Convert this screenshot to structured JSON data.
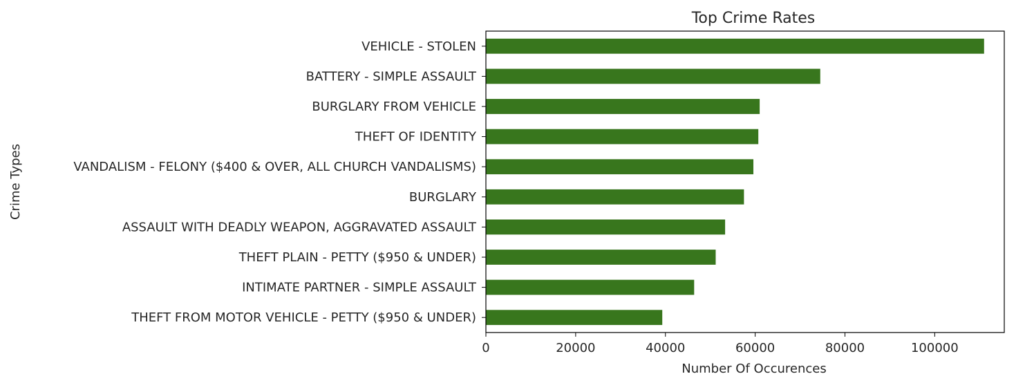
{
  "chart_data": {
    "type": "bar",
    "orientation": "horizontal",
    "title": "Top Crime Rates",
    "xlabel": "Number Of Occurences",
    "ylabel": "Crime Types",
    "xlim": [
      0,
      115500
    ],
    "xticks": [
      0,
      20000,
      40000,
      60000,
      80000,
      100000
    ],
    "grid": false,
    "bar_color": "#38761d",
    "categories": [
      "VEHICLE - STOLEN",
      "BATTERY - SIMPLE ASSAULT",
      "BURGLARY FROM VEHICLE",
      "THEFT OF IDENTITY",
      "VANDALISM - FELONY ($400 & OVER, ALL CHURCH VANDALISMS)",
      "BURGLARY",
      "ASSAULT WITH DEADLY WEAPON, AGGRAVATED ASSAULT",
      "THEFT PLAIN - PETTY ($950 & UNDER)",
      "INTIMATE PARTNER - SIMPLE ASSAULT",
      "THEFT FROM MOTOR VEHICLE - PETTY ($950 & UNDER)"
    ],
    "values": [
      111000,
      74500,
      61000,
      60700,
      59600,
      57500,
      53300,
      51200,
      46400,
      39300
    ]
  }
}
